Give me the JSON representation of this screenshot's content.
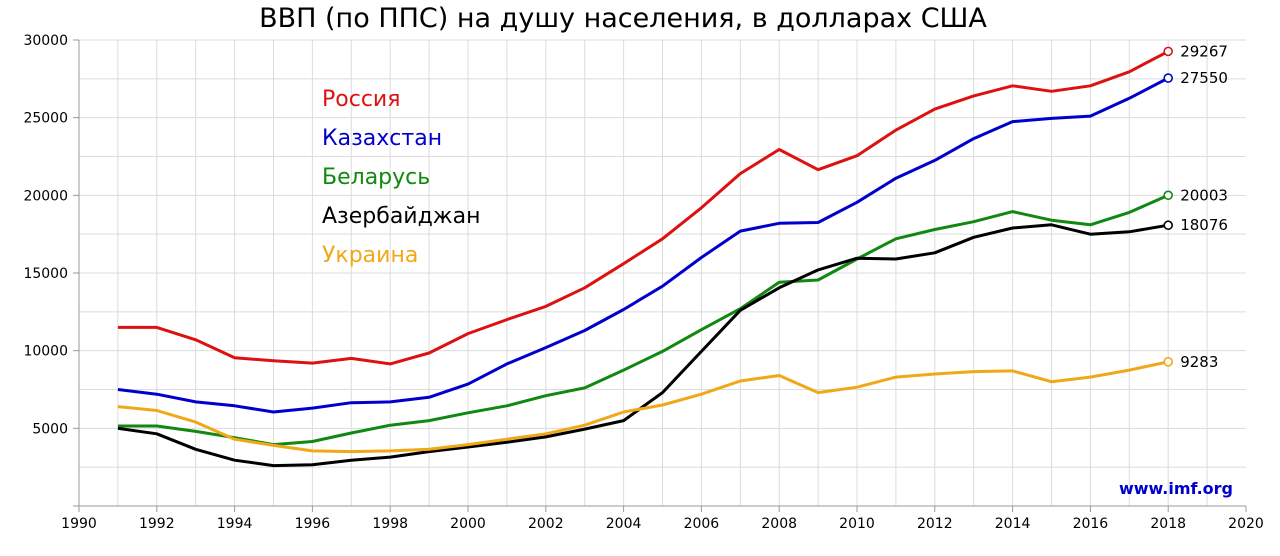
{
  "chart_data": {
    "type": "line",
    "title": "ВВП (по ППС) на душу населения, в долларах США",
    "xlabel": "",
    "ylabel": "",
    "xlim": [
      1990,
      2020
    ],
    "ylim": [
      0,
      30000
    ],
    "x_ticks": [
      1990,
      1992,
      1994,
      1996,
      1998,
      2000,
      2002,
      2004,
      2006,
      2008,
      2010,
      2012,
      2014,
      2016,
      2018,
      2020
    ],
    "y_ticks": [
      5000,
      10000,
      15000,
      20000,
      25000,
      30000
    ],
    "grid": true,
    "legend_position": "top-left",
    "source": "www.imf.org",
    "source_color": "#0000cc",
    "x": [
      1991,
      1992,
      1993,
      1994,
      1995,
      1996,
      1997,
      1998,
      1999,
      2000,
      2001,
      2002,
      2003,
      2004,
      2005,
      2006,
      2007,
      2008,
      2009,
      2010,
      2011,
      2012,
      2013,
      2014,
      2015,
      2016,
      2017,
      2018
    ],
    "series": [
      {
        "name": "Россия",
        "color": "#dd1111",
        "end_label": "29267",
        "values": [
          11500,
          11500,
          10700,
          9550,
          9350,
          9200,
          9500,
          9150,
          9850,
          11100,
          12000,
          12850,
          14050,
          15600,
          17200,
          19200,
          21400,
          22950,
          21650,
          22550,
          24200,
          25550,
          26400,
          27050,
          26700,
          27050,
          27950,
          29267
        ]
      },
      {
        "name": "Казахстан",
        "color": "#0000cc",
        "end_label": "27550",
        "values": [
          7500,
          7200,
          6700,
          6450,
          6050,
          6300,
          6650,
          6700,
          7000,
          7850,
          9150,
          10200,
          11300,
          12650,
          14150,
          16000,
          17700,
          18200,
          18250,
          19550,
          21100,
          22250,
          23650,
          24750,
          24950,
          25100,
          26250,
          27550
        ]
      },
      {
        "name": "Беларусь",
        "color": "#118811",
        "end_label": "20003",
        "values": [
          5150,
          5150,
          4800,
          4400,
          3950,
          4150,
          4700,
          5200,
          5500,
          6000,
          6450,
          7100,
          7600,
          8750,
          9950,
          11350,
          12700,
          14400,
          14550,
          15900,
          17200,
          17800,
          18300,
          18950,
          18400,
          18100,
          18900,
          20003
        ]
      },
      {
        "name": "Азербайджан",
        "color": "#000000",
        "end_label": "18076",
        "values": [
          5000,
          4650,
          3650,
          2950,
          2600,
          2650,
          2950,
          3150,
          3500,
          3800,
          4100,
          4450,
          4950,
          5500,
          7300,
          9950,
          12600,
          14050,
          15200,
          15950,
          15900,
          16300,
          17300,
          17900,
          18100,
          17500,
          17650,
          18076
        ]
      },
      {
        "name": "Украина",
        "color": "#f0a818",
        "end_label": "9283",
        "values": [
          6400,
          6150,
          5400,
          4300,
          3900,
          3550,
          3500,
          3550,
          3650,
          3950,
          4300,
          4650,
          5200,
          6050,
          6500,
          7200,
          8050,
          8400,
          7300,
          7650,
          8300,
          8500,
          8650,
          8700,
          8000,
          8300,
          8750,
          9283
        ]
      }
    ]
  }
}
